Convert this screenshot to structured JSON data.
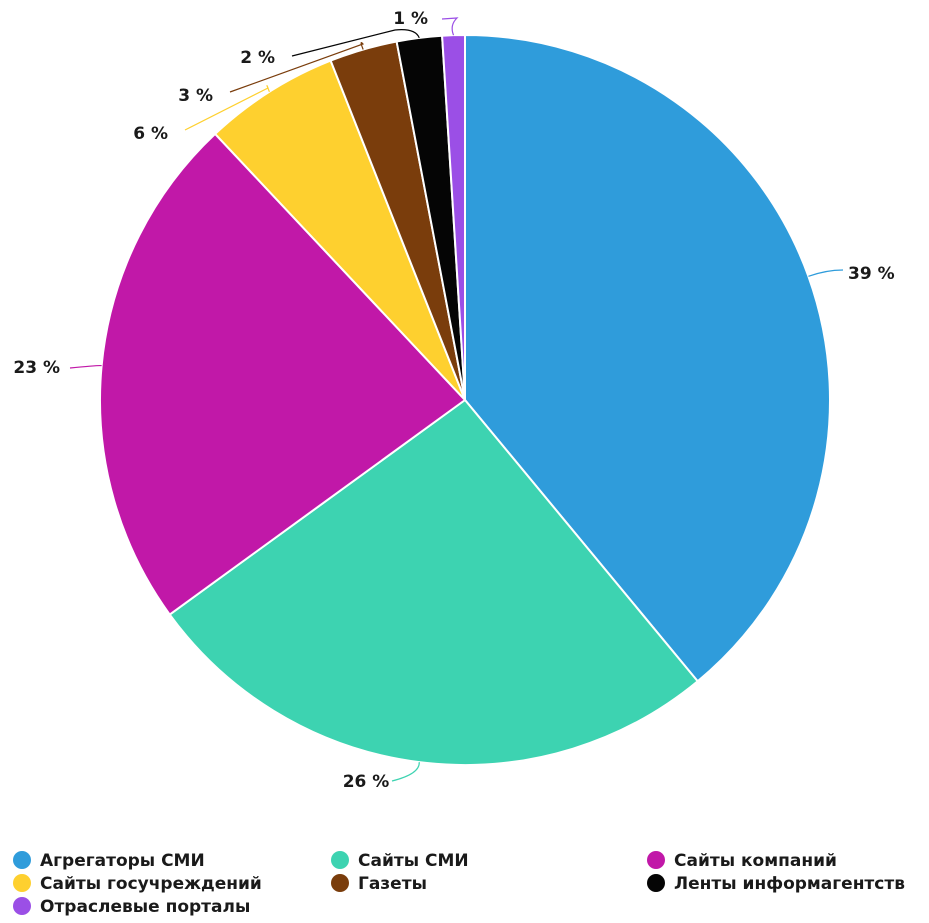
{
  "chart_data": {
    "type": "pie",
    "title": "",
    "start_angle_deg": 0,
    "direction": "clockwise",
    "legend_position": "bottom",
    "label_suffix": " %",
    "slices": [
      {
        "label": "Агрегаторы СМИ",
        "value": 39,
        "color": "#2f9cdb"
      },
      {
        "label": "Сайты СМИ",
        "value": 26,
        "color": "#3dd3b1"
      },
      {
        "label": "Сайты компаний",
        "value": 23,
        "color": "#c118a8"
      },
      {
        "label": "Сайты госучреждений",
        "value": 6,
        "color": "#fed02f"
      },
      {
        "label": "Газеты",
        "value": 3,
        "color": "#7a3d0c"
      },
      {
        "label": "Ленты информагентств",
        "value": 2,
        "color": "#050505"
      },
      {
        "label": "Отраслевые порталы",
        "value": 1,
        "color": "#9b4fe6"
      }
    ]
  }
}
